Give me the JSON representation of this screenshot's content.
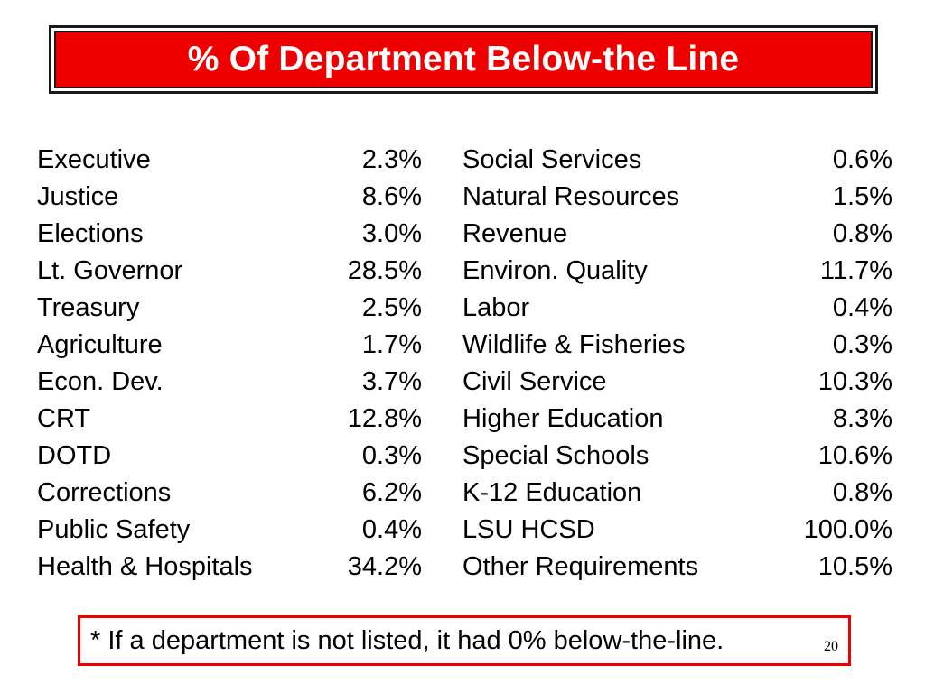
{
  "slide": {
    "title": "% Of Department Below-the Line",
    "footnote": "* If a department is not listed, it had 0% below-the-line.",
    "slide_number": "20"
  },
  "departments": {
    "left": [
      {
        "name": "Executive",
        "value": "2.3%"
      },
      {
        "name": "Justice",
        "value": "8.6%"
      },
      {
        "name": "Elections",
        "value": "3.0%"
      },
      {
        "name": "Lt. Governor",
        "value": "28.5%"
      },
      {
        "name": "Treasury",
        "value": "2.5%"
      },
      {
        "name": "Agriculture",
        "value": "1.7%"
      },
      {
        "name": "Econ. Dev.",
        "value": "3.7%"
      },
      {
        "name": "CRT",
        "value": "12.8%"
      },
      {
        "name": "DOTD",
        "value": "0.3%"
      },
      {
        "name": "Corrections",
        "value": "6.2%"
      },
      {
        "name": "Public Safety",
        "value": "0.4%"
      },
      {
        "name": "Health & Hospitals",
        "value": "34.2%"
      }
    ],
    "right": [
      {
        "name": "Social Services",
        "value": "0.6%"
      },
      {
        "name": "Natural Resources",
        "value": "1.5%"
      },
      {
        "name": "Revenue",
        "value": "0.8%"
      },
      {
        "name": "Environ. Quality",
        "value": "11.7%"
      },
      {
        "name": "Labor",
        "value": "0.4%"
      },
      {
        "name": "Wildlife & Fisheries",
        "value": "0.3%"
      },
      {
        "name": "Civil Service",
        "value": "10.3%"
      },
      {
        "name": "Higher Education",
        "value": "8.3%"
      },
      {
        "name": "Special Schools",
        "value": "10.6%"
      },
      {
        "name": "K-12 Education",
        "value": "0.8%"
      },
      {
        "name": "LSU HCSD",
        "value": "100.0%"
      },
      {
        "name": "Other Requirements",
        "value": "10.5%"
      }
    ]
  },
  "colors": {
    "title_background": "#ee0000",
    "title_text": "#ffffff",
    "footnote_border": "#ee0000"
  }
}
